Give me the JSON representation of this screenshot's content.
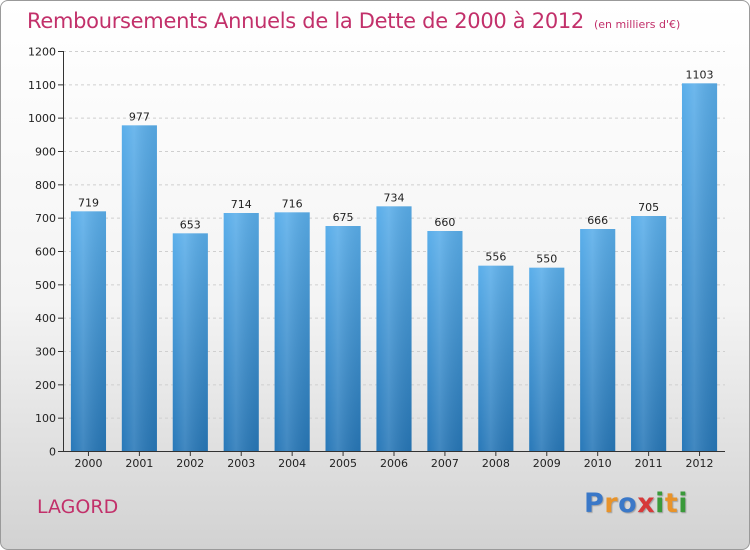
{
  "chart_data": {
    "type": "bar",
    "title": "Remboursements Annuels de la Dette de 2000 à 2012",
    "subtitle": "(en milliers d'€)",
    "categories": [
      "2000",
      "2001",
      "2002",
      "2003",
      "2004",
      "2005",
      "2006",
      "2007",
      "2008",
      "2009",
      "2010",
      "2011",
      "2012"
    ],
    "values": [
      719,
      977,
      653,
      714,
      716,
      675,
      734,
      660,
      556,
      550,
      666,
      705,
      1103
    ],
    "ylim": [
      0,
      1200
    ],
    "yticks": [
      0,
      100,
      200,
      300,
      400,
      500,
      600,
      700,
      800,
      900,
      1000,
      1100,
      1200
    ],
    "grid": true,
    "xlabel": "",
    "ylabel": "",
    "bar_color_top": "#5aaeea",
    "bar_color_bottom": "#2878b8"
  },
  "footer": {
    "commune": "LAGORD",
    "brand": [
      "P",
      "r",
      "o",
      "x",
      "i",
      "t",
      "i"
    ],
    "brand_colors": [
      "#3a78c8",
      "#e8932a",
      "#3a78c8",
      "#d63a3a",
      "#3a9a3a",
      "#e8932a",
      "#3a9a3a"
    ]
  }
}
